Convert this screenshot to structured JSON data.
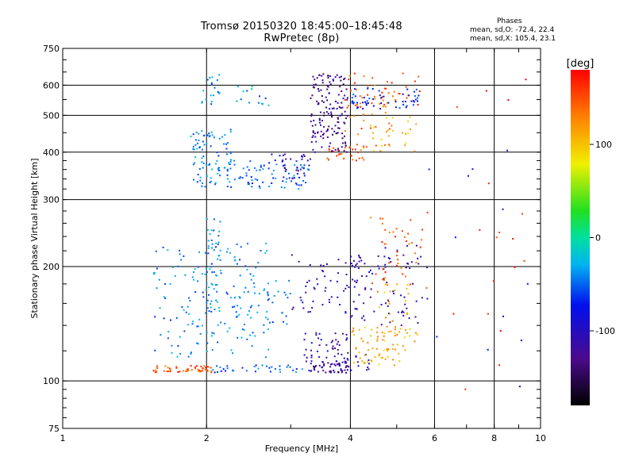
{
  "chart_data": {
    "type": "scatter",
    "title": "Tromsø 20150320 18:45:00–18:45:48",
    "subtitle": "RwPretec (8p)",
    "xlabel": "Frequency [MHz]",
    "ylabel": "Stationary phase Virtual Height [km]",
    "xscale": "log",
    "yscale": "log",
    "xlim": [
      1,
      10
    ],
    "ylim": [
      75,
      750
    ],
    "x_ticks": [
      1,
      2,
      4,
      6,
      8,
      10
    ],
    "x_tick_labels": [
      "1",
      "2",
      "4",
      "6",
      "8",
      "10"
    ],
    "y_ticks": [
      75,
      100,
      200,
      300,
      400,
      500,
      600,
      750
    ],
    "y_tick_labels": [
      "75",
      "100",
      "200",
      "300",
      "400",
      "500",
      "600",
      "750"
    ],
    "grid": true,
    "phases": {
      "title": "Phases",
      "o_line": "mean, sd,O: -72.4, 22.4",
      "x_line": "mean, sd,X: 105.4, 23.1"
    },
    "colorbar": {
      "label": "[deg]",
      "range": [
        -180,
        180
      ],
      "ticks": [
        100,
        0,
        -100
      ],
      "tick_labels": [
        "100",
        "0",
        "-100"
      ],
      "colormap": "rainbow"
    },
    "clusters": [
      {
        "x": [
          1.55,
          2.05
        ],
        "y": [
          105,
          110
        ],
        "phase": 150,
        "n": 50
      },
      {
        "x": [
          2.05,
          3.3
        ],
        "y": [
          105,
          110
        ],
        "phase": -50,
        "n": 35
      },
      {
        "x": [
          3.3,
          3.95
        ],
        "y": [
          105,
          112
        ],
        "phase": -125,
        "n": 40
      },
      {
        "x": [
          3.7,
          4.4
        ],
        "y": [
          105,
          118
        ],
        "phase": -105,
        "n": 30
      },
      {
        "x": [
          3.2,
          4.0
        ],
        "y": [
          112,
          135
        ],
        "phase": -110,
        "n": 45
      },
      {
        "x": [
          4.0,
          5.6
        ],
        "y": [
          110,
          140
        ],
        "phase": 110,
        "n": 70
      },
      {
        "x": [
          1.55,
          2.7
        ],
        "y": [
          115,
          230
        ],
        "phase": -40,
        "n": 160
      },
      {
        "x": [
          2.0,
          2.15
        ],
        "y": [
          150,
          270
        ],
        "phase": -40,
        "n": 45
      },
      {
        "x": [
          2.4,
          3.0
        ],
        "y": [
          140,
          185
        ],
        "phase": -45,
        "n": 35
      },
      {
        "x": [
          3.0,
          4.3
        ],
        "y": [
          150,
          215
        ],
        "phase": -110,
        "n": 60
      },
      {
        "x": [
          4.0,
          5.8
        ],
        "y": [
          140,
          230
        ],
        "phase": -115,
        "n": 80
      },
      {
        "x": [
          4.4,
          5.8
        ],
        "y": [
          170,
          290
        ],
        "phase": 150,
        "n": 45
      },
      {
        "x": [
          4.6,
          5.3
        ],
        "y": [
          130,
          180
        ],
        "phase": 115,
        "n": 25
      },
      {
        "x": [
          1.85,
          2.25
        ],
        "y": [
          320,
          460
        ],
        "phase": -40,
        "n": 90
      },
      {
        "x": [
          2.2,
          3.3
        ],
        "y": [
          320,
          380
        ],
        "phase": -50,
        "n": 80
      },
      {
        "x": [
          2.7,
          3.3
        ],
        "y": [
          340,
          395
        ],
        "phase": -105,
        "n": 30
      },
      {
        "x": [
          3.3,
          3.95
        ],
        "y": [
          400,
          645
        ],
        "phase": -125,
        "n": 150
      },
      {
        "x": [
          3.55,
          4.3
        ],
        "y": [
          380,
          420
        ],
        "phase": 150,
        "n": 25
      },
      {
        "x": [
          3.9,
          4.9
        ],
        "y": [
          400,
          560
        ],
        "phase": 140,
        "n": 35
      },
      {
        "x": [
          3.9,
          5.6
        ],
        "y": [
          520,
          650
        ],
        "phase": 150,
        "n": 40
      },
      {
        "x": [
          4.0,
          5.6
        ],
        "y": [
          520,
          590
        ],
        "phase": -70,
        "n": 55
      },
      {
        "x": [
          4.4,
          5.6
        ],
        "y": [
          400,
          500
        ],
        "phase": 105,
        "n": 25
      },
      {
        "x": [
          1.95,
          2.15
        ],
        "y": [
          530,
          650
        ],
        "phase": -40,
        "n": 20
      },
      {
        "x": [
          2.3,
          2.7
        ],
        "y": [
          530,
          600
        ],
        "phase": -40,
        "n": 15
      },
      {
        "x": [
          5.8,
          9.8
        ],
        "y": [
          90,
          660
        ],
        "phase": 170,
        "n": 18
      },
      {
        "x": [
          5.8,
          9.8
        ],
        "y": [
          90,
          600
        ],
        "phase": -80,
        "n": 12
      }
    ]
  }
}
